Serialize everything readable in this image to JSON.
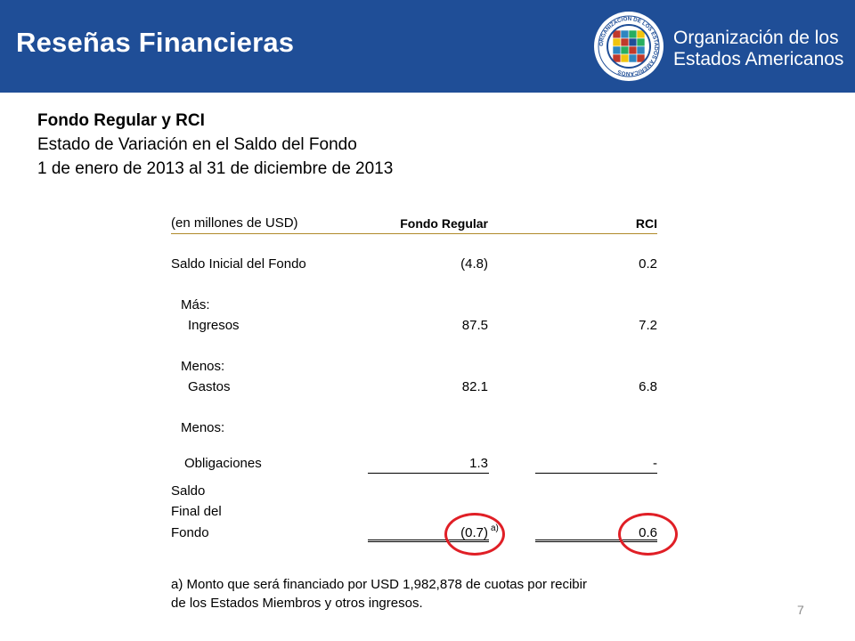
{
  "header": {
    "title": "Reseñas Financieras",
    "org_line1": "Organización de los",
    "org_line2": "Estados Americanos",
    "seal_text": "ORGANIZACION DE LOS ESTADOS AMERICANOS"
  },
  "subtitle": {
    "line1": "Fondo Regular y RCI",
    "line2": "Estado de Variación en el Saldo del Fondo",
    "line3": "1 de enero de 2013 al 31 de diciembre de 2013"
  },
  "table": {
    "units_label": "(en millones de USD)",
    "col_regular": "Fondo Regular",
    "col_rci": "RCI",
    "opening_label": "Saldo Inicial del Fondo",
    "opening_regular": "(4.8)",
    "opening_rci": "0.2",
    "plus_label": "Más:",
    "income_label": "Ingresos",
    "income_regular": "87.5",
    "income_rci": "7.2",
    "minus_label_1": "Menos:",
    "expenses_label": "Gastos",
    "expenses_regular": "82.1",
    "expenses_rci": "6.8",
    "minus_label_2": "Menos:",
    "obligations_label": "Obligaciones",
    "obligations_regular": "1.3",
    "obligations_rci": "-",
    "closing_label_1": "Saldo",
    "closing_label_2": "Final del",
    "closing_label_3": "Fondo",
    "closing_regular": "(0.7)",
    "closing_footnote_marker": "a)",
    "closing_rci": "0.6"
  },
  "footnote": {
    "line1": "a) Monto que será financiado por USD 1,982,878 de cuotas por recibir",
    "line2": "de los Estados Miembros y otros ingresos."
  },
  "page_number": "7",
  "colors": {
    "header_bg": "#1f4e97",
    "highlight_circle": "#e01f26",
    "header_rule": "#b08a2a"
  }
}
